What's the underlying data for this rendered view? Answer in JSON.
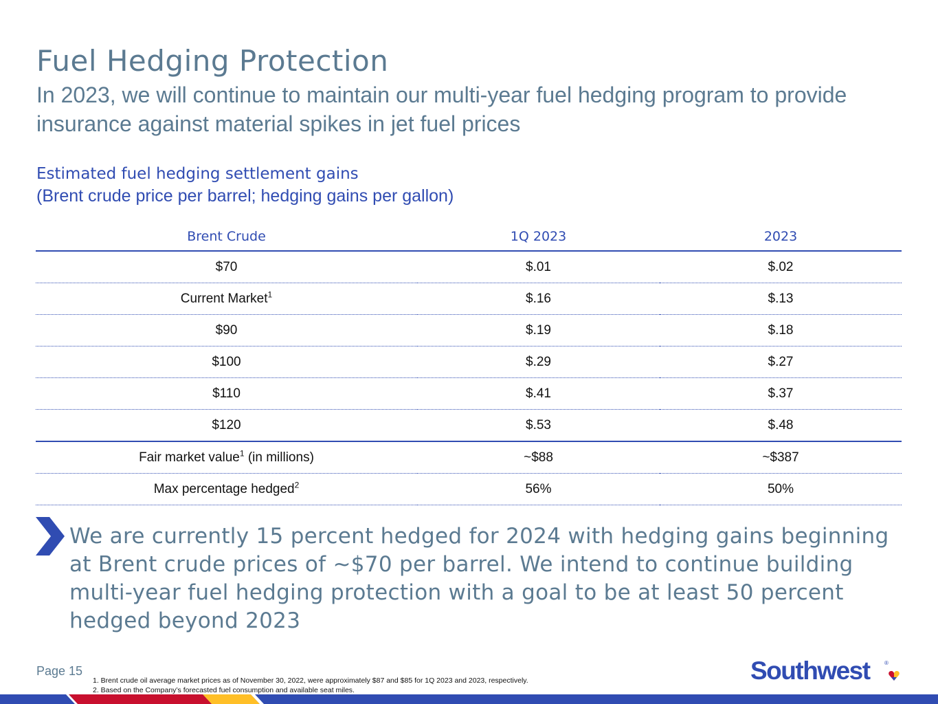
{
  "title": "Fuel Hedging Protection",
  "subtitle": "In 2023, we will continue to maintain our multi-year fuel hedging program to provide insurance against material spikes in jet fuel prices",
  "section": {
    "heading": "Estimated fuel hedging settlement gains",
    "subheading": "(Brent crude price per barrel; hedging gains per gallon)"
  },
  "table": {
    "headers": [
      "Brent Crude",
      "1Q 2023",
      "2023"
    ],
    "rows": [
      {
        "label": "$70",
        "q1": "$.01",
        "fy": "$.02"
      },
      {
        "label": "Current Market",
        "sup": "1",
        "q1": "$.16",
        "fy": "$.13"
      },
      {
        "label": "$90",
        "q1": "$.19",
        "fy": "$.18"
      },
      {
        "label": "$100",
        "q1": "$.29",
        "fy": "$.27"
      },
      {
        "label": "$110",
        "q1": "$.41",
        "fy": "$.37"
      },
      {
        "label": "$120",
        "q1": "$.53",
        "fy": "$.48"
      }
    ],
    "fair_value": {
      "label": "Fair market value",
      "sup": "1",
      "suffix": " (in millions)",
      "q1": "~$88",
      "fy": "~$387"
    },
    "max_hedged": {
      "label": "Max percentage hedged",
      "sup": "2",
      "q1": "56%",
      "fy": "50%"
    }
  },
  "callout": "We are currently 15 percent hedged for 2024 with hedging gains beginning at Brent crude prices of ~$70 per barrel. We intend to continue building multi-year fuel hedging protection with a goal to be at least 50 percent hedged beyond 2023",
  "footer": {
    "page": "Page 15",
    "footnotes": [
      "1. Brent crude oil average market prices as of November 30, 2022, were approximately $87 and $85 for 1Q 2023 and 2023, respectively.",
      "2. Based on the Company’s forecasted fuel consumption and available seat miles."
    ],
    "logo_text": "Southwest",
    "logo_mark": "®"
  },
  "colors": {
    "primary_blue": "#304cb2",
    "heading_slate": "#5b7a91",
    "red": "#c8102e",
    "yellow": "#ffbf27"
  }
}
